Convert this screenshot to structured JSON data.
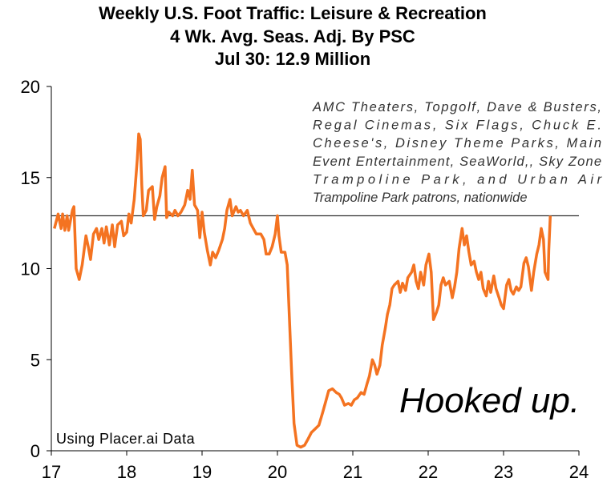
{
  "chart_data": {
    "type": "line",
    "title": "Weekly U.S. Foot Traffic: Leisure & Recreation",
    "subtitle": [
      "4 Wk. Avg.  Seas. Adj. By PSC",
      "Jul 30: 12.9 Million"
    ],
    "note": [
      "AMC Theaters, Topgolf, Dave & Busters,",
      "Regal Cinemas, Six Flags, Chuck E.",
      "Cheese's, Disney Theme Parks, Main",
      "Event Entertainment, SeaWorld,, Sky Zone",
      "Trampoline Park, and Urban Air",
      "Trampoline Park patrons, nationwide"
    ],
    "headline": "Hooked up.",
    "source": "Using Placer.ai Data",
    "color": "#f47321",
    "hline": 12.9,
    "hline_color": "#333333",
    "xlim": [
      17,
      24
    ],
    "xticks": [
      17,
      18,
      19,
      20,
      21,
      22,
      23,
      24
    ],
    "ylim": [
      0,
      20
    ],
    "yticks": [
      0,
      5,
      10,
      15,
      20
    ],
    "x": [
      17.04,
      17.09,
      17.13,
      17.15,
      17.18,
      17.21,
      17.23,
      17.28,
      17.3,
      17.33,
      17.37,
      17.41,
      17.46,
      17.49,
      17.52,
      17.56,
      17.6,
      17.63,
      17.67,
      17.7,
      17.73,
      17.77,
      17.81,
      17.84,
      17.88,
      17.93,
      17.96,
      18.0,
      18.03,
      18.06,
      18.1,
      18.14,
      18.16,
      18.18,
      18.2,
      18.22,
      18.26,
      18.29,
      18.34,
      18.37,
      18.4,
      18.44,
      18.47,
      18.51,
      18.53,
      18.56,
      18.61,
      18.64,
      18.68,
      18.72,
      18.77,
      18.81,
      18.84,
      18.87,
      18.9,
      18.94,
      18.97,
      19.0,
      19.03,
      19.07,
      19.11,
      19.14,
      19.18,
      19.22,
      19.27,
      19.3,
      19.33,
      19.37,
      19.4,
      19.45,
      19.48,
      19.51,
      19.55,
      19.6,
      19.64,
      19.68,
      19.72,
      19.78,
      19.82,
      19.85,
      19.89,
      19.93,
      19.97,
      20.0,
      20.02,
      20.05,
      20.1,
      20.13,
      20.16,
      20.19,
      20.22,
      20.26,
      20.31,
      20.36,
      20.4,
      20.45,
      20.5,
      20.55,
      20.6,
      20.64,
      20.68,
      20.73,
      20.78,
      20.82,
      20.85,
      20.89,
      20.94,
      20.98,
      21.02,
      21.06,
      21.11,
      21.15,
      21.19,
      21.22,
      21.26,
      21.29,
      21.32,
      21.36,
      21.39,
      21.43,
      21.46,
      21.49,
      21.52,
      21.55,
      21.6,
      21.63,
      21.66,
      21.7,
      21.73,
      21.78,
      21.81,
      21.84,
      21.87,
      21.9,
      21.94,
      21.97,
      22.01,
      22.04,
      22.07,
      22.11,
      22.14,
      22.17,
      22.2,
      22.23,
      22.28,
      22.32,
      22.35,
      22.38,
      22.41,
      22.45,
      22.48,
      22.51,
      22.54,
      22.57,
      22.61,
      22.64,
      22.67,
      22.7,
      22.73,
      22.77,
      22.8,
      22.83,
      22.87,
      22.9,
      22.94,
      22.97,
      23.0,
      23.04,
      23.07,
      23.1,
      23.13,
      23.17,
      23.2,
      23.23,
      23.27,
      23.3,
      23.33,
      23.37,
      23.4,
      23.44,
      23.47,
      23.5,
      23.53,
      23.55,
      23.59,
      23.6,
      23.62
    ],
    "values": [
      12.2,
      13.0,
      12.2,
      13.0,
      12.1,
      12.9,
      12.1,
      13.2,
      13.4,
      10.0,
      9.4,
      10.2,
      11.8,
      11.2,
      10.5,
      11.9,
      12.2,
      11.6,
      12.2,
      11.4,
      12.3,
      11.3,
      12.4,
      11.2,
      12.4,
      12.6,
      11.8,
      12.0,
      13.0,
      12.5,
      13.8,
      16.0,
      17.4,
      17.1,
      14.6,
      12.9,
      13.2,
      14.3,
      14.5,
      12.7,
      13.4,
      14.0,
      15.0,
      15.6,
      12.8,
      13.1,
      12.9,
      13.2,
      12.9,
      13.1,
      13.5,
      14.3,
      13.8,
      15.4,
      13.5,
      13.2,
      11.7,
      13.1,
      12.0,
      11.0,
      10.2,
      10.9,
      10.6,
      11.0,
      11.6,
      12.2,
      13.2,
      13.8,
      12.9,
      13.4,
      13.1,
      13.2,
      12.9,
      13.2,
      12.5,
      12.2,
      11.9,
      11.9,
      11.6,
      10.8,
      10.8,
      11.2,
      11.9,
      12.9,
      11.8,
      10.9,
      10.9,
      10.2,
      7.2,
      4.1,
      1.5,
      0.3,
      0.2,
      0.3,
      0.6,
      1.0,
      1.2,
      1.4,
      2.1,
      2.7,
      3.3,
      3.4,
      3.2,
      3.1,
      2.9,
      2.5,
      2.6,
      2.5,
      2.8,
      2.9,
      3.2,
      3.1,
      3.7,
      4.1,
      5.0,
      4.7,
      4.2,
      4.7,
      5.8,
      6.7,
      7.5,
      8.0,
      8.9,
      9.1,
      9.3,
      8.7,
      9.2,
      8.8,
      9.5,
      9.8,
      10.2,
      9.3,
      8.9,
      9.8,
      9.1,
      10.2,
      10.8,
      9.8,
      7.2,
      7.6,
      8.0,
      9.1,
      9.5,
      9.1,
      9.3,
      8.4,
      9.0,
      9.8,
      11.1,
      12.2,
      11.3,
      11.8,
      10.9,
      10.2,
      10.4,
      9.8,
      9.4,
      9.8,
      8.9,
      8.5,
      9.3,
      8.7,
      9.6,
      8.9,
      8.4,
      8.0,
      7.8,
      9.1,
      9.4,
      8.8,
      8.6,
      9.0,
      8.8,
      9.0,
      10.3,
      10.6,
      10.1,
      8.8,
      9.8,
      10.8,
      11.3,
      12.2,
      11.6,
      9.8,
      9.4,
      11.0,
      12.9
    ]
  }
}
